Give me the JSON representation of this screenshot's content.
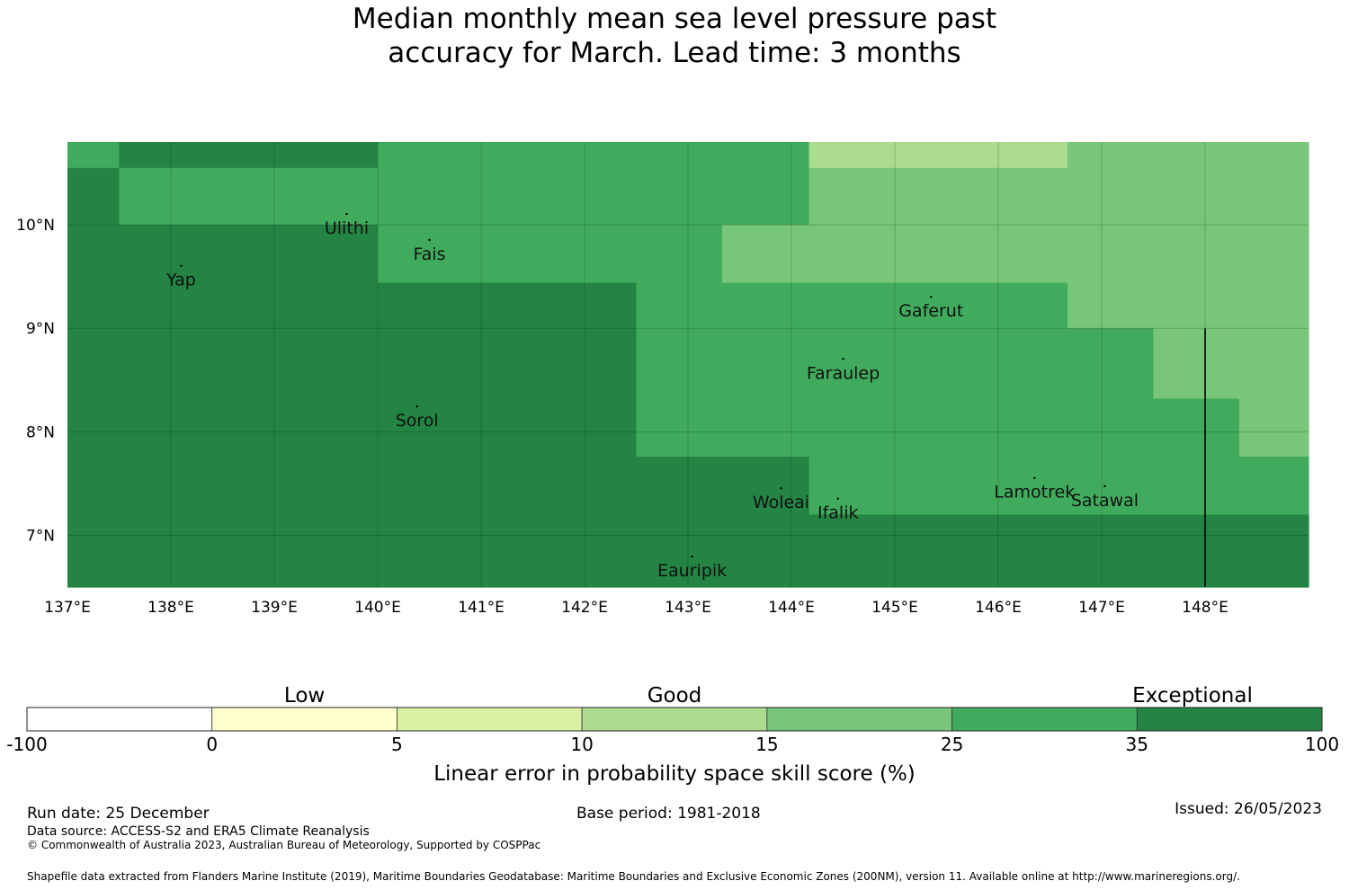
{
  "title": {
    "line1": "Median monthly mean sea level pressure past",
    "line2": "accuracy for March. Lead time: 3 months"
  },
  "map": {
    "lon_range": [
      137,
      149
    ],
    "lat_range": [
      6.5,
      10.8
    ],
    "lon_ticks": [
      "137°E",
      "138°E",
      "139°E",
      "140°E",
      "141°E",
      "142°E",
      "143°E",
      "144°E",
      "145°E",
      "146°E",
      "147°E",
      "148°E"
    ],
    "lat_ticks": [
      "10°N",
      "9°N",
      "8°N",
      "7°N"
    ],
    "colors": {
      "c4": "#acdd8e",
      "c5": "#78c679",
      "c6": "#41ab5d",
      "c7": "#238443"
    },
    "cells": [
      {
        "lon0": 137.0,
        "lon1": 137.5,
        "lat0": 10.55,
        "lat1": 10.8,
        "c": "c6"
      },
      {
        "lon0": 137.5,
        "lon1": 140.0,
        "lat0": 10.55,
        "lat1": 10.8,
        "c": "c7"
      },
      {
        "lon0": 140.0,
        "lon1": 144.17,
        "lat0": 10.55,
        "lat1": 10.8,
        "c": "c6"
      },
      {
        "lon0": 144.17,
        "lon1": 146.67,
        "lat0": 10.55,
        "lat1": 10.8,
        "c": "c4"
      },
      {
        "lon0": 146.67,
        "lon1": 149.0,
        "lat0": 10.55,
        "lat1": 10.8,
        "c": "c5"
      },
      {
        "lon0": 137.0,
        "lon1": 137.5,
        "lat0": 10.0,
        "lat1": 10.55,
        "c": "c7"
      },
      {
        "lon0": 137.5,
        "lon1": 144.17,
        "lat0": 10.0,
        "lat1": 10.55,
        "c": "c6"
      },
      {
        "lon0": 144.17,
        "lon1": 149.0,
        "lat0": 10.0,
        "lat1": 10.55,
        "c": "c5"
      },
      {
        "lon0": 137.0,
        "lon1": 140.0,
        "lat0": 9.44,
        "lat1": 10.0,
        "c": "c7"
      },
      {
        "lon0": 140.0,
        "lon1": 143.33,
        "lat0": 9.44,
        "lat1": 10.0,
        "c": "c6"
      },
      {
        "lon0": 143.33,
        "lon1": 149.0,
        "lat0": 9.44,
        "lat1": 10.0,
        "c": "c5"
      },
      {
        "lon0": 137.0,
        "lon1": 142.5,
        "lat0": 9.0,
        "lat1": 9.44,
        "c": "c7"
      },
      {
        "lon0": 142.5,
        "lon1": 146.67,
        "lat0": 9.0,
        "lat1": 9.44,
        "c": "c6"
      },
      {
        "lon0": 146.67,
        "lon1": 149.0,
        "lat0": 9.0,
        "lat1": 9.44,
        "c": "c5"
      },
      {
        "lon0": 137.0,
        "lon1": 142.5,
        "lat0": 8.88,
        "lat1": 9.0,
        "c": "c7"
      },
      {
        "lon0": 142.5,
        "lon1": 147.5,
        "lat0": 8.88,
        "lat1": 9.0,
        "c": "c6"
      },
      {
        "lon0": 147.5,
        "lon1": 149.0,
        "lat0": 8.88,
        "lat1": 9.0,
        "c": "c5"
      },
      {
        "lon0": 137.0,
        "lon1": 142.5,
        "lat0": 8.32,
        "lat1": 8.88,
        "c": "c7"
      },
      {
        "lon0": 142.5,
        "lon1": 147.5,
        "lat0": 8.32,
        "lat1": 8.88,
        "c": "c6"
      },
      {
        "lon0": 147.5,
        "lon1": 149.0,
        "lat0": 8.32,
        "lat1": 8.88,
        "c": "c5"
      },
      {
        "lon0": 137.0,
        "lon1": 142.5,
        "lat0": 7.76,
        "lat1": 8.32,
        "c": "c7"
      },
      {
        "lon0": 142.5,
        "lon1": 148.33,
        "lat0": 7.76,
        "lat1": 8.32,
        "c": "c6"
      },
      {
        "lon0": 148.33,
        "lon1": 149.0,
        "lat0": 7.76,
        "lat1": 8.32,
        "c": "c5"
      },
      {
        "lon0": 137.0,
        "lon1": 144.17,
        "lat0": 7.2,
        "lat1": 7.76,
        "c": "c7"
      },
      {
        "lon0": 144.17,
        "lon1": 149.0,
        "lat0": 7.2,
        "lat1": 7.76,
        "c": "c6"
      },
      {
        "lon0": 137.0,
        "lon1": 149.0,
        "lat0": 6.5,
        "lat1": 7.2,
        "c": "c7"
      }
    ],
    "islands": [
      {
        "name": "Ulithi",
        "lon": 139.7,
        "lat": 10.0
      },
      {
        "name": "Yap",
        "lon": 138.1,
        "lat": 9.5
      },
      {
        "name": "Fais",
        "lon": 140.5,
        "lat": 9.75
      },
      {
        "name": "Gaferut",
        "lon": 145.35,
        "lat": 9.2
      },
      {
        "name": "Faraulep",
        "lon": 144.5,
        "lat": 8.6
      },
      {
        "name": "Sorol",
        "lon": 140.38,
        "lat": 8.14
      },
      {
        "name": "Woleai",
        "lon": 143.9,
        "lat": 7.35
      },
      {
        "name": "Ifalik",
        "lon": 144.45,
        "lat": 7.25
      },
      {
        "name": "Lamotrek",
        "lon": 146.35,
        "lat": 7.45
      },
      {
        "name": "Satawal",
        "lon": 147.03,
        "lat": 7.37
      },
      {
        "name": "Eauripik",
        "lon": 143.04,
        "lat": 6.69
      }
    ],
    "eez_boundary_lon": 148.0
  },
  "colorbar": {
    "categories": [
      "Low",
      "Good",
      "Exceptional"
    ],
    "boundaries": [
      "-100",
      "0",
      "5",
      "10",
      "15",
      "25",
      "35",
      "100"
    ],
    "colors": [
      "#ffffff",
      "#ffffcc",
      "#d9f0a3",
      "#acdd8e",
      "#78c679",
      "#41ab5d",
      "#238443"
    ],
    "label": "Linear error in probability space skill score (%)"
  },
  "footer": {
    "run_date": "Run date: 25 December",
    "base_period": "Base period: 1981-2018",
    "issued": "Issued: 26/05/2023",
    "data_source": "Data source: ACCESS-S2 and ERA5 Climate Reanalysis",
    "copyright": "© Commonwealth of Australia 2023, Australian Bureau of Meteorology, Supported by COSPPac",
    "shapefile": "Shapefile data extracted from Flanders Marine Institute (2019), Maritime Boundaries Geodatabase: Maritime Boundaries and Exclusive Economic Zones (200NM), version 11. Available online at http://www.marineregions.org/."
  }
}
